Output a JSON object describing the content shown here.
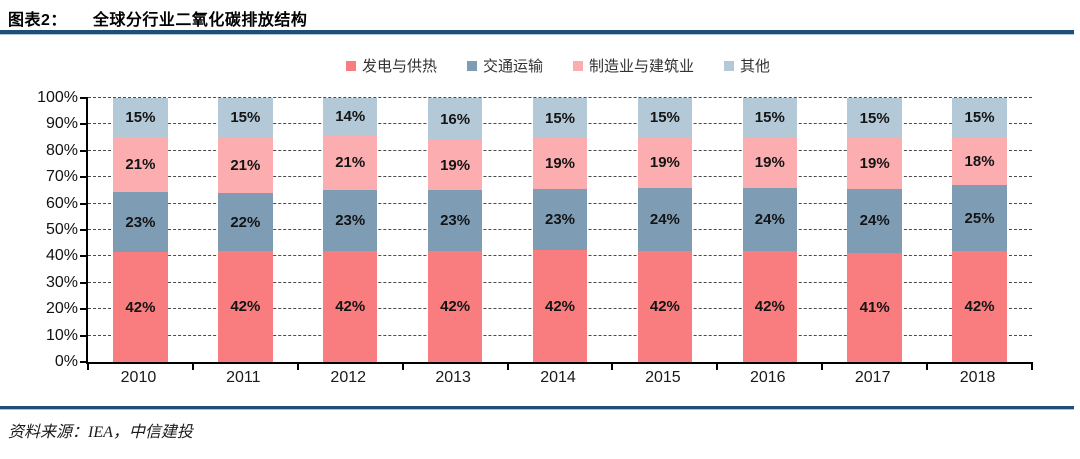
{
  "header": {
    "title_prefix": "图表2：",
    "title": "全球分行业二氧化碳排放结构"
  },
  "chart_data": {
    "type": "bar",
    "stacked": true,
    "title": "全球分行业二氧化碳排放结构",
    "categories": [
      "2010",
      "2011",
      "2012",
      "2013",
      "2014",
      "2015",
      "2016",
      "2017",
      "2018"
    ],
    "series": [
      {
        "name": "发电与供热",
        "color": "#F97D7E",
        "values": [
          42,
          42,
          42,
          42,
          42,
          42,
          42,
          41,
          42
        ]
      },
      {
        "name": "交通运输",
        "color": "#7E9DB5",
        "values": [
          23,
          22,
          23,
          23,
          23,
          24,
          24,
          24,
          25
        ]
      },
      {
        "name": "制造业与建筑业",
        "color": "#FBADAF",
        "values": [
          21,
          21,
          21,
          19,
          19,
          19,
          19,
          19,
          18
        ]
      },
      {
        "name": "其他",
        "color": "#B3C9D7",
        "values": [
          15,
          15,
          14,
          16,
          15,
          15,
          15,
          15,
          15
        ]
      }
    ],
    "y_ticks": [
      "0%",
      "10%",
      "20%",
      "30%",
      "40%",
      "50%",
      "60%",
      "70%",
      "80%",
      "90%",
      "100%"
    ],
    "ylim": [
      0,
      100
    ],
    "xlabel": "",
    "ylabel": "",
    "grid": "horizontal-dashed",
    "legend_position": "top",
    "data_label_suffix": "%"
  },
  "footer": {
    "source": "资料来源：IEA，中信建投"
  },
  "colors": {
    "rule": "#1F4E79",
    "axis": "#000000",
    "gridline": "#4a4a4a"
  }
}
